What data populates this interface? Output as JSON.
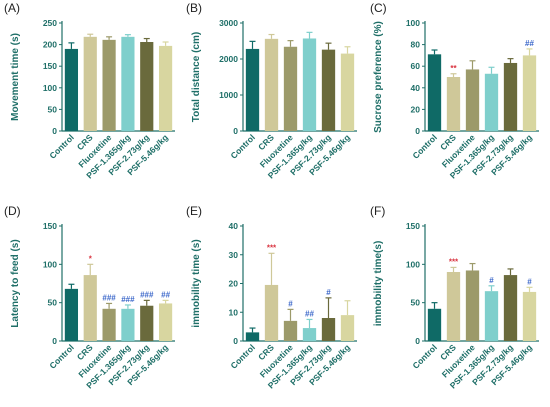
{
  "colors": {
    "axis": "#1f6f68",
    "text": "#1f6f68",
    "letter": "#222222",
    "control": "#0f6a66",
    "crs": "#cfc899",
    "fluoxetine": "#9c9a6a",
    "psf1": "#7fcfcc",
    "psf2": "#6a6a3c",
    "psf3": "#d8d6a0",
    "sig_red": "#d9333f",
    "sig_blue": "#3a66c9"
  },
  "chart_data": [
    {
      "letter": "(A)",
      "type": "bar",
      "title": "",
      "xlabel": "",
      "ylabel": "Movement time (s)",
      "ylim": [
        0,
        250
      ],
      "yticks": [
        0,
        50,
        100,
        150,
        200,
        250
      ],
      "categories": [
        "Control",
        "CRS",
        "Fluoxetine",
        "PSF-1.365g/kg",
        "PSF-2.73g/kg",
        "PSF-5.46g/kg"
      ],
      "values": [
        190,
        218,
        211,
        218,
        206,
        197
      ],
      "errors": [
        14,
        6,
        7,
        5,
        8,
        9
      ],
      "annotations": [
        "",
        "",
        "",
        "",
        "",
        ""
      ],
      "annotation_colors": [
        "",
        "",
        "",
        "",
        "",
        ""
      ]
    },
    {
      "letter": "(B)",
      "type": "bar",
      "title": "",
      "xlabel": "",
      "ylabel": "Total distance (cm)",
      "ylim": [
        0,
        3000
      ],
      "yticks": [
        0,
        1000,
        2000,
        3000
      ],
      "categories": [
        "Control",
        "CRS",
        "Fluoxetine",
        "PSF-1.365g/kg",
        "PSF-2.73g/kg",
        "PSF-5.46g/kg"
      ],
      "values": [
        2280,
        2560,
        2340,
        2570,
        2260,
        2150
      ],
      "errors": [
        210,
        120,
        170,
        170,
        180,
        190
      ],
      "annotations": [
        "",
        "",
        "",
        "",
        "",
        ""
      ],
      "annotation_colors": [
        "",
        "",
        "",
        "",
        "",
        ""
      ]
    },
    {
      "letter": "(C)",
      "type": "bar",
      "title": "",
      "xlabel": "",
      "ylabel": "Sucrose preference (%)",
      "ylim": [
        0,
        100
      ],
      "yticks": [
        0,
        20,
        40,
        60,
        80,
        100
      ],
      "categories": [
        "Control",
        "CRS",
        "Fluoxetine",
        "PSF-1.365g/kg",
        "PSF-2.73g/kg",
        "PSF-5.46g/kg"
      ],
      "values": [
        71,
        50,
        57,
        53,
        63,
        70
      ],
      "errors": [
        4,
        3,
        8,
        6,
        4,
        6
      ],
      "annotations": [
        "",
        "**",
        "",
        "",
        "",
        "##"
      ],
      "annotation_colors": [
        "",
        "sig_red",
        "",
        "",
        "",
        "sig_blue"
      ]
    },
    {
      "letter": "(D)",
      "type": "bar",
      "title": "",
      "xlabel": "",
      "ylabel": "Latency to feed (s)",
      "ylim": [
        0,
        150
      ],
      "yticks": [
        0,
        50,
        100,
        150
      ],
      "categories": [
        "Control",
        "CRS",
        "Fluoxetine",
        "PSF-1.365g/kg",
        "PSF-2.73g/kg",
        "PSF-5.46g/kg"
      ],
      "values": [
        68,
        86,
        42,
        42,
        46,
        49
      ],
      "errors": [
        6,
        14,
        7,
        5,
        7,
        4
      ],
      "annotations": [
        "",
        "*",
        "###",
        "###",
        "###",
        "##"
      ],
      "annotation_colors": [
        "",
        "sig_red",
        "sig_blue",
        "sig_blue",
        "sig_blue",
        "sig_blue"
      ]
    },
    {
      "letter": "(E)",
      "type": "bar",
      "title": "",
      "xlabel": "",
      "ylabel": "immobility time (s)",
      "ylim": [
        0,
        40
      ],
      "yticks": [
        0,
        10,
        20,
        30,
        40
      ],
      "categories": [
        "Control",
        "CRS",
        "Fluoxetine",
        "PSF-1.365g/kg",
        "PSF-2.73g/kg",
        "PSF-5.46g/kg"
      ],
      "values": [
        3,
        19.5,
        7,
        4.5,
        8,
        9
      ],
      "errors": [
        1.5,
        11,
        4,
        3,
        7,
        5
      ],
      "annotations": [
        "",
        "***",
        "#",
        "##",
        "#",
        ""
      ],
      "annotation_colors": [
        "",
        "sig_red",
        "sig_blue",
        "sig_blue",
        "sig_blue",
        ""
      ]
    },
    {
      "letter": "(F)",
      "type": "bar",
      "title": "",
      "xlabel": "",
      "ylabel": "immobility time(s)",
      "ylim": [
        0,
        150
      ],
      "yticks": [
        0,
        50,
        100,
        150
      ],
      "categories": [
        "Control",
        "CRS",
        "Fluoxetine",
        "PSF-1.365g/kg",
        "PSF-2.73g/kg",
        "PSF-5.46g/kg"
      ],
      "values": [
        42,
        90,
        92,
        65,
        86,
        64
      ],
      "errors": [
        8,
        6,
        9,
        7,
        8,
        6
      ],
      "annotations": [
        "",
        "***",
        "",
        "#",
        "",
        "#"
      ],
      "annotation_colors": [
        "",
        "sig_red",
        "",
        "sig_blue",
        "",
        "sig_blue"
      ]
    }
  ]
}
